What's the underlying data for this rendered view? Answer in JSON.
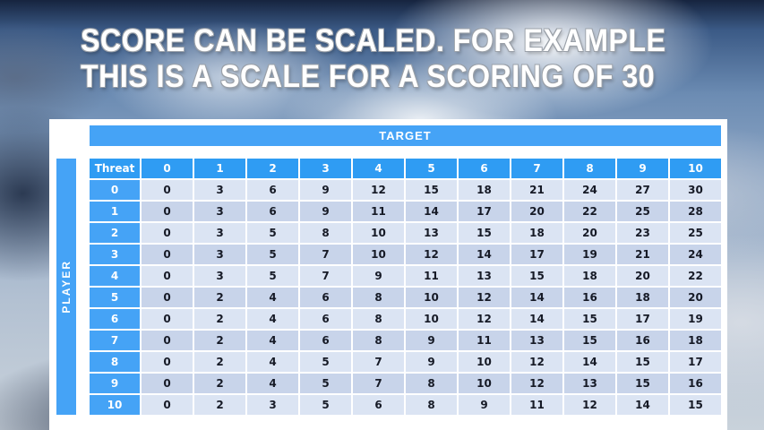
{
  "slide": {
    "title_line1": "SCORE CAN BE SCALED. FOR EXAMPLE",
    "title_line2": "THIS IS A SCALE FOR A SCORING OF 30"
  },
  "table": {
    "target_label": "TARGET",
    "player_label": "PLAYER",
    "threat_label": "Threat",
    "columns": [
      "0",
      "1",
      "2",
      "3",
      "4",
      "5",
      "6",
      "7",
      "8",
      "9",
      "10"
    ],
    "rows": [
      {
        "label": "0",
        "values": [
          0,
          3,
          6,
          9,
          12,
          15,
          18,
          21,
          24,
          27,
          30
        ]
      },
      {
        "label": "1",
        "values": [
          0,
          3,
          6,
          9,
          11,
          14,
          17,
          20,
          22,
          25,
          28
        ]
      },
      {
        "label": "2",
        "values": [
          0,
          3,
          5,
          8,
          10,
          13,
          15,
          18,
          20,
          23,
          25
        ]
      },
      {
        "label": "3",
        "values": [
          0,
          3,
          5,
          7,
          10,
          12,
          14,
          17,
          19,
          21,
          24
        ]
      },
      {
        "label": "4",
        "values": [
          0,
          3,
          5,
          7,
          9,
          11,
          13,
          15,
          18,
          20,
          22
        ]
      },
      {
        "label": "5",
        "values": [
          0,
          2,
          4,
          6,
          8,
          10,
          12,
          14,
          16,
          18,
          20
        ]
      },
      {
        "label": "6",
        "values": [
          0,
          2,
          4,
          6,
          8,
          10,
          12,
          14,
          15,
          17,
          19
        ]
      },
      {
        "label": "7",
        "values": [
          0,
          2,
          4,
          6,
          8,
          9,
          11,
          13,
          15,
          16,
          18
        ]
      },
      {
        "label": "8",
        "values": [
          0,
          2,
          4,
          5,
          7,
          9,
          10,
          12,
          14,
          15,
          17
        ]
      },
      {
        "label": "9",
        "values": [
          0,
          2,
          4,
          5,
          7,
          8,
          10,
          12,
          13,
          15,
          16
        ]
      },
      {
        "label": "10",
        "values": [
          0,
          2,
          3,
          5,
          6,
          8,
          9,
          11,
          12,
          14,
          15
        ]
      }
    ]
  },
  "colors": {
    "header_blue": "#2f9cf3",
    "label_blue": "#45a3f6",
    "row_light": "#dbe4f3",
    "row_dark": "#c8d4ea",
    "panel_white": "#ffffff"
  }
}
